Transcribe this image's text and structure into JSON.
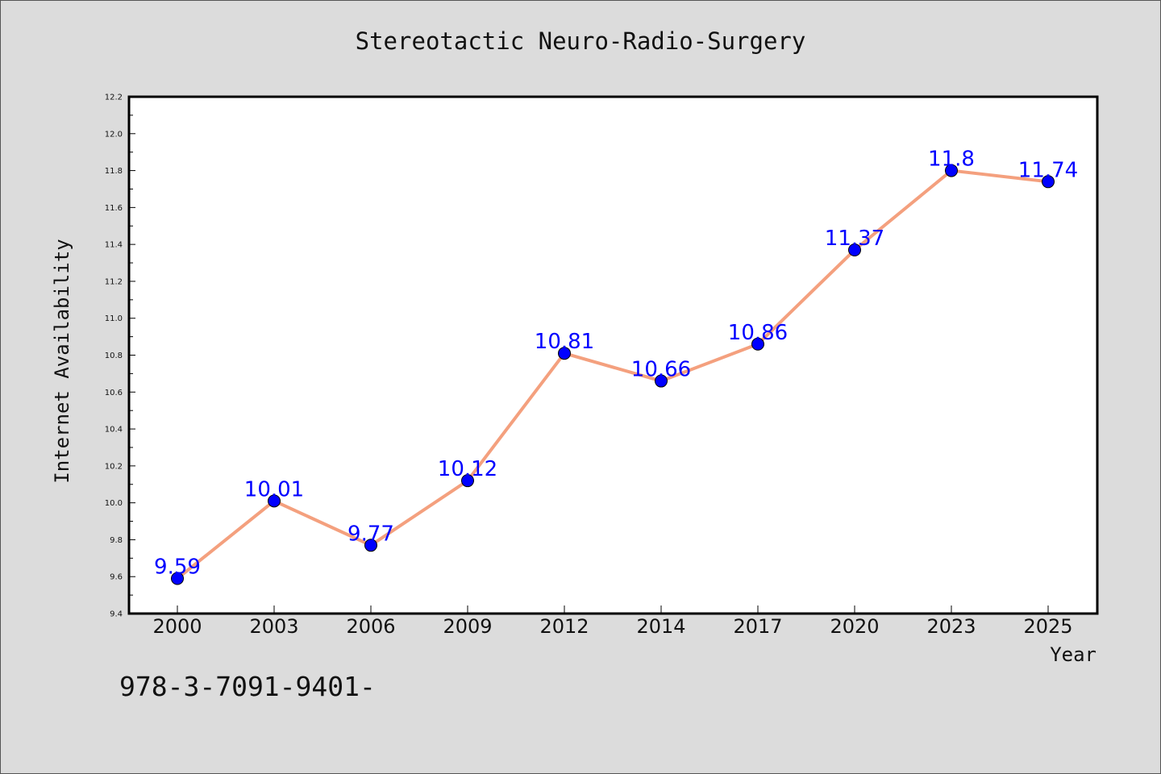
{
  "chart_data": {
    "type": "line",
    "title": "Stereotactic Neuro-Radio-Surgery",
    "xlabel": "Year",
    "ylabel": "Internet Availability",
    "categories": [
      "2000",
      "2003",
      "2006",
      "2009",
      "2012",
      "2014",
      "2017",
      "2020",
      "2023",
      "2025"
    ],
    "series": [
      {
        "values": [
          9.59,
          10.01,
          9.77,
          10.12,
          10.81,
          10.66,
          10.86,
          11.37,
          11.8,
          11.74
        ],
        "line_color": "#f4a07e",
        "marker_color": "#0000ff"
      }
    ],
    "data_labels": [
      "9.59",
      "10.01",
      "9.77",
      "10.12",
      "10.81",
      "10.66",
      "10.86",
      "11.37",
      "11.8",
      "11.74"
    ],
    "ylim": [
      9.4,
      12.2
    ],
    "yticks": [
      "9.4",
      "9.6",
      "9.8",
      "10.0",
      "10.2",
      "10.4",
      "10.6",
      "10.8",
      "11.0",
      "11.2",
      "11.4",
      "11.6",
      "11.8",
      "12.0",
      "12.2"
    ],
    "grid": false,
    "data_label_color": "#0000ff"
  },
  "footer_text": "978-3-7091-9401-"
}
